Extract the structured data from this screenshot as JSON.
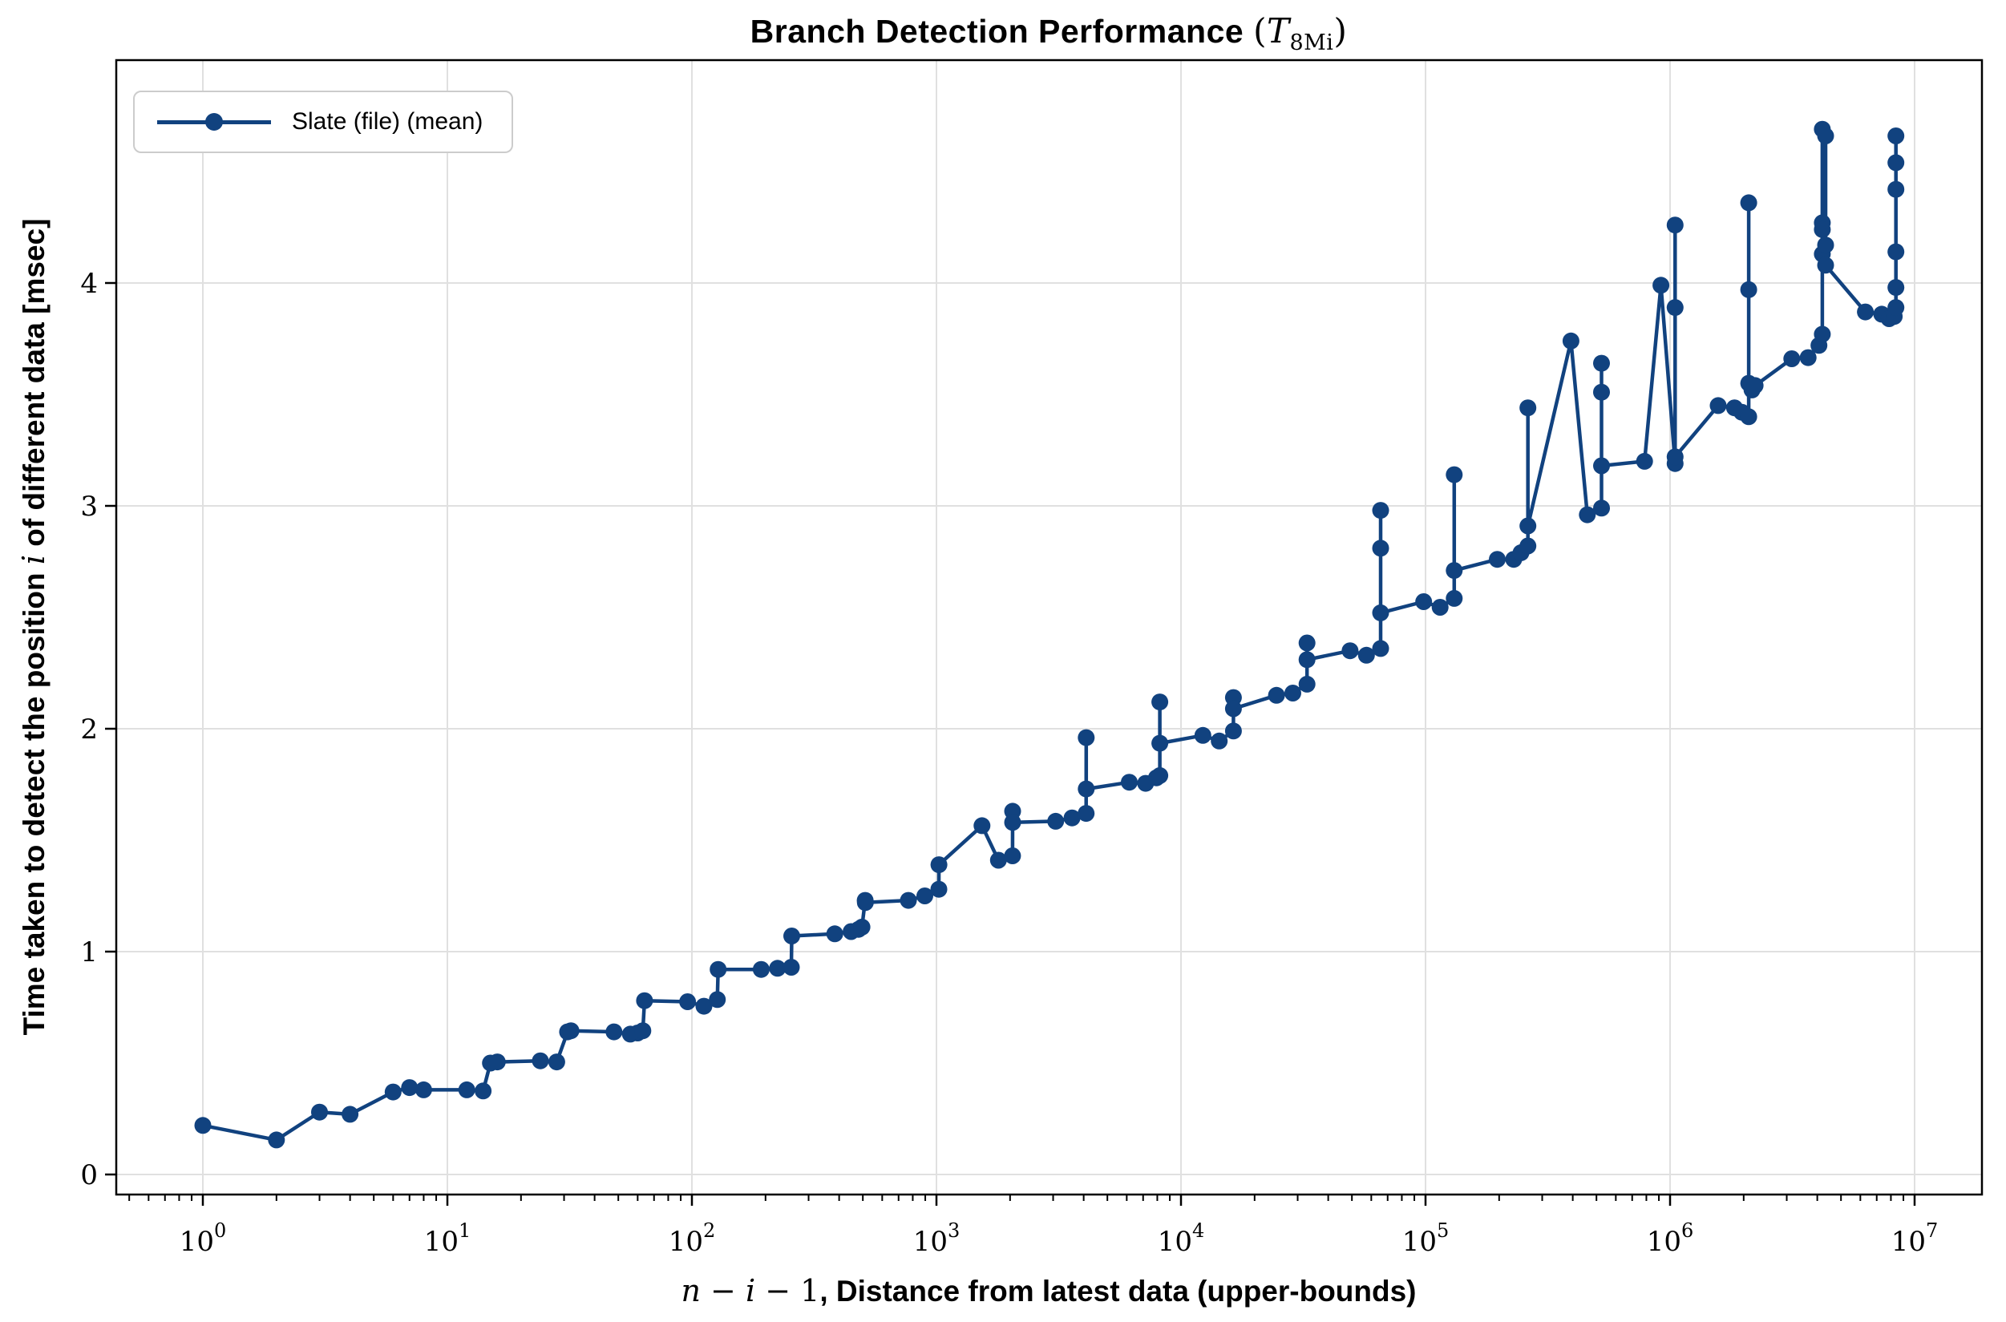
{
  "figure": {
    "title": {
      "prefix": "Branch Detection Performance ",
      "math_open": "(",
      "math_var": "T",
      "math_sub": "8Mi",
      "math_close": ")"
    },
    "x_axis": {
      "label_var1": "n",
      "label_minus1": " − ",
      "label_var2": "i",
      "label_minus2": " − 1",
      "label_rest": ", Distance from latest data (upper-bounds)",
      "scale": "log",
      "tick_base": "10"
    },
    "y_axis": {
      "label_prefix": "Time taken to detect the position ",
      "label_math": "i",
      "label_suffix": " of different data [msec]"
    },
    "legend": {
      "label": "Slate (file) (mean)"
    },
    "colors": {
      "line": "#11427f",
      "grid": "#e0e0e0",
      "spine": "#000000",
      "background": "#ffffff"
    }
  },
  "chart_data": {
    "type": "line",
    "title": "Branch Detection Performance (T_8Mi)",
    "xlabel": "n − i − 1, Distance from latest data (upper-bounds)",
    "ylabel": "Time taken to detect the position i of different data [msec]",
    "xscale": "log",
    "grid": true,
    "legend_position": "upper left",
    "xlim": [
      0.443,
      18800000
    ],
    "ylim": [
      -0.09,
      5.0
    ],
    "x_tick_exponents": [
      0,
      1,
      2,
      3,
      4,
      5,
      6,
      7
    ],
    "y_ticks": [
      0,
      1,
      2,
      3,
      4
    ],
    "series": [
      {
        "name": "Slate (file) (mean)",
        "color": "#11427f",
        "marker": "circle",
        "points": [
          [
            1,
            0.22
          ],
          [
            2,
            0.155
          ],
          [
            3,
            0.28
          ],
          [
            4,
            0.27
          ],
          [
            6,
            0.37
          ],
          [
            7,
            0.39
          ],
          [
            8,
            0.38
          ],
          [
            12,
            0.38
          ],
          [
            14,
            0.375
          ],
          [
            15,
            0.5
          ],
          [
            16,
            0.505
          ],
          [
            24,
            0.51
          ],
          [
            28,
            0.505
          ],
          [
            31,
            0.64
          ],
          [
            32,
            0.645
          ],
          [
            48,
            0.64
          ],
          [
            56,
            0.63
          ],
          [
            60,
            0.635
          ],
          [
            63,
            0.645
          ],
          [
            64,
            0.78
          ],
          [
            96,
            0.775
          ],
          [
            112,
            0.755
          ],
          [
            127,
            0.785
          ],
          [
            128,
            0.92
          ],
          [
            192,
            0.92
          ],
          [
            224,
            0.925
          ],
          [
            255,
            0.93
          ],
          [
            256,
            1.07
          ],
          [
            384,
            1.08
          ],
          [
            448,
            1.09
          ],
          [
            480,
            1.1
          ],
          [
            496,
            1.11
          ],
          [
            511,
            1.23
          ],
          [
            512,
            1.22
          ],
          [
            768,
            1.23
          ],
          [
            896,
            1.25
          ],
          [
            1023,
            1.28
          ],
          [
            1024,
            1.39
          ],
          [
            1536,
            1.565
          ],
          [
            1792,
            1.41
          ],
          [
            2047,
            1.43
          ],
          [
            2048,
            1.63
          ],
          [
            2049,
            1.58
          ],
          [
            3072,
            1.585
          ],
          [
            3584,
            1.6
          ],
          [
            4095,
            1.62
          ],
          [
            4096,
            1.96
          ],
          [
            4097,
            1.73
          ],
          [
            6144,
            1.76
          ],
          [
            7168,
            1.755
          ],
          [
            7936,
            1.78
          ],
          [
            8191,
            1.79
          ],
          [
            8192,
            2.12
          ],
          [
            8193,
            1.935
          ],
          [
            12288,
            1.97
          ],
          [
            14336,
            1.945
          ],
          [
            16383,
            1.99
          ],
          [
            16384,
            2.14
          ],
          [
            16385,
            2.09
          ],
          [
            24576,
            2.15
          ],
          [
            28672,
            2.16
          ],
          [
            32767,
            2.2
          ],
          [
            32768,
            2.385
          ],
          [
            32769,
            2.31
          ],
          [
            49152,
            2.35
          ],
          [
            57344,
            2.33
          ],
          [
            65535,
            2.36
          ],
          [
            65536,
            2.98
          ],
          [
            65537,
            2.81
          ],
          [
            65538,
            2.52
          ],
          [
            98304,
            2.57
          ],
          [
            114688,
            2.545
          ],
          [
            131071,
            2.585
          ],
          [
            131072,
            3.14
          ],
          [
            131073,
            2.71
          ],
          [
            196608,
            2.76
          ],
          [
            229376,
            2.76
          ],
          [
            245760,
            2.79
          ],
          [
            262143,
            2.82
          ],
          [
            262144,
            3.44
          ],
          [
            262145,
            2.91
          ],
          [
            393216,
            3.74
          ],
          [
            458752,
            2.96
          ],
          [
            524287,
            2.99
          ],
          [
            524288,
            3.64
          ],
          [
            524289,
            3.51
          ],
          [
            524290,
            3.18
          ],
          [
            786432,
            3.2
          ],
          [
            917504,
            3.99
          ],
          [
            1048575,
            3.19
          ],
          [
            1048576,
            4.26
          ],
          [
            1048577,
            3.89
          ],
          [
            1048578,
            3.22
          ],
          [
            1572864,
            3.45
          ],
          [
            1835008,
            3.44
          ],
          [
            1966080,
            3.42
          ],
          [
            2097151,
            3.4
          ],
          [
            2097152,
            4.36
          ],
          [
            2097153,
            3.97
          ],
          [
            2097154,
            3.55
          ],
          [
            2162688,
            3.52
          ],
          [
            2228224,
            3.54
          ],
          [
            3145728,
            3.66
          ],
          [
            3670016,
            3.665
          ],
          [
            4063232,
            3.72
          ],
          [
            4194303,
            3.77
          ],
          [
            4194304,
            4.69
          ],
          [
            4194305,
            4.27
          ],
          [
            4194306,
            4.24
          ],
          [
            4194307,
            4.13
          ],
          [
            4325376,
            4.66
          ],
          [
            4325377,
            4.17
          ],
          [
            4325378,
            4.08
          ],
          [
            6291456,
            3.87
          ],
          [
            7340032,
            3.86
          ],
          [
            7864320,
            3.84
          ],
          [
            8257536,
            3.85
          ],
          [
            8388607,
            3.89
          ],
          [
            8388608,
            3.98
          ],
          [
            8388609,
            4.14
          ],
          [
            8388610,
            4.42
          ],
          [
            8388611,
            4.54
          ],
          [
            8388612,
            4.66
          ]
        ]
      }
    ]
  }
}
